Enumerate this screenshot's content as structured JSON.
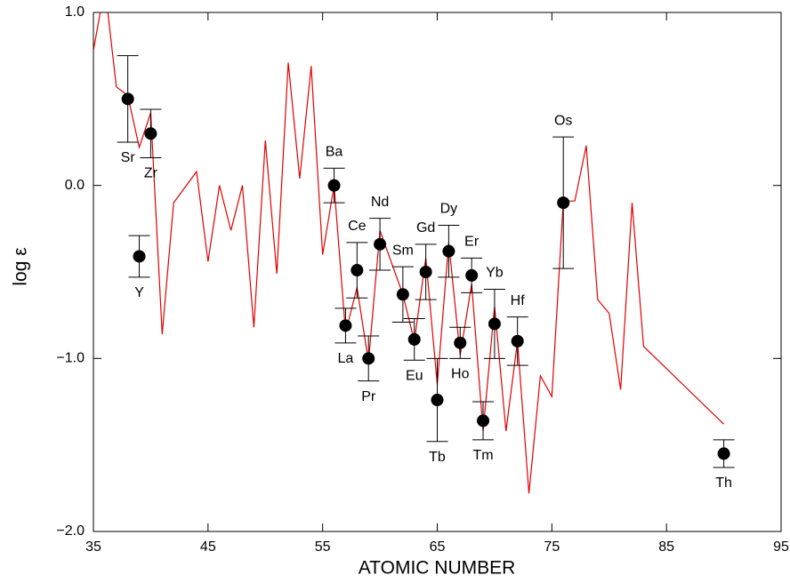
{
  "chart_data": {
    "type": "scatter",
    "x_label": "ATOMIC NUMBER",
    "y_label": "log ε",
    "xlim": [
      35,
      95
    ],
    "xticks": [
      35,
      45,
      55,
      65,
      75,
      85,
      95
    ],
    "ylim": [
      -2.0,
      1.0
    ],
    "yticks": [
      {
        "value": -2.0,
        "label": "−2.0"
      },
      {
        "value": -1.0,
        "label": "−1.0"
      },
      {
        "value": 0.0,
        "label": "0.0"
      },
      {
        "value": 1.0,
        "label": "1.0"
      }
    ],
    "points": {
      "color": "#000000",
      "labels": [
        "Sr",
        "Y",
        "Zr",
        "Ba",
        "La",
        "Ce",
        "Pr",
        "Nd",
        "Sm",
        "Eu",
        "Gd",
        "Tb",
        "Dy",
        "Ho",
        "Er",
        "Tm",
        "Yb",
        "Hf",
        "Os",
        "Th"
      ],
      "x": [
        38,
        39,
        40,
        56,
        57,
        58,
        59,
        60,
        62,
        63,
        64,
        65,
        66,
        67,
        68,
        69,
        70,
        72,
        76,
        90
      ],
      "values": [
        0.5,
        -0.41,
        0.3,
        0.0,
        -0.81,
        -0.49,
        -1.0,
        -0.34,
        -0.63,
        -0.89,
        -0.5,
        -1.24,
        -0.38,
        -0.91,
        -0.52,
        -1.36,
        -0.8,
        -0.9,
        -0.1,
        -1.55
      ],
      "errors": [
        0.25,
        0.12,
        0.14,
        0.1,
        0.1,
        0.16,
        0.13,
        0.15,
        0.16,
        0.12,
        0.16,
        0.24,
        0.15,
        0.09,
        0.1,
        0.11,
        0.2,
        0.14,
        0.38,
        0.08
      ]
    },
    "line": {
      "color": "#e00000",
      "x": [
        35,
        36,
        37,
        38,
        39,
        40,
        41,
        42,
        44,
        45,
        46,
        47,
        48,
        49,
        50,
        51,
        52,
        53,
        54,
        55,
        56,
        57,
        58,
        59,
        60,
        62,
        63,
        64,
        65,
        66,
        67,
        68,
        69,
        70,
        71,
        72,
        73,
        74,
        75,
        76,
        77,
        78,
        79,
        80,
        81,
        82,
        83,
        90
      ],
      "values": [
        0.78,
        1.15,
        0.57,
        0.52,
        0.22,
        0.42,
        -0.86,
        -0.1,
        0.08,
        -0.44,
        0.0,
        -0.26,
        0.0,
        -0.82,
        0.26,
        -0.51,
        0.71,
        0.04,
        0.69,
        -0.4,
        0.0,
        -0.85,
        -0.59,
        -1.02,
        -0.26,
        -0.63,
        -0.9,
        -0.42,
        -1.15,
        -0.33,
        -0.98,
        -0.57,
        -1.42,
        -0.7,
        -1.42,
        -0.9,
        -1.78,
        -1.1,
        -1.22,
        -0.09,
        -0.09,
        0.23,
        -0.66,
        -0.74,
        -1.18,
        -0.1,
        -0.93,
        -1.38
      ]
    }
  }
}
